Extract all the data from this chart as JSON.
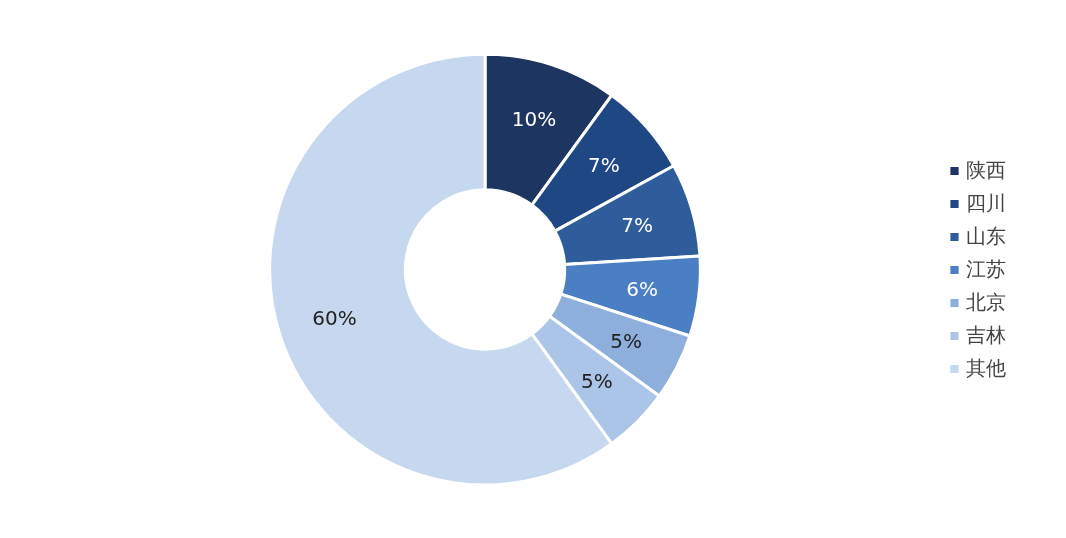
{
  "chart_data": {
    "type": "donut",
    "categories": [
      "陕西",
      "四川",
      "山东",
      "江苏",
      "北京",
      "吉林",
      "其他"
    ],
    "values": [
      10,
      7,
      7,
      6,
      5,
      5,
      60
    ],
    "colors": [
      "#1c3561",
      "#1f4784",
      "#2f5d9c",
      "#4a7fc4",
      "#8eafdb",
      "#aac5e8",
      "#c6d8ef"
    ],
    "value_labels": [
      "10%",
      "7%",
      "7%",
      "6%",
      "5%",
      "5%",
      "60%"
    ],
    "legend": "right"
  }
}
